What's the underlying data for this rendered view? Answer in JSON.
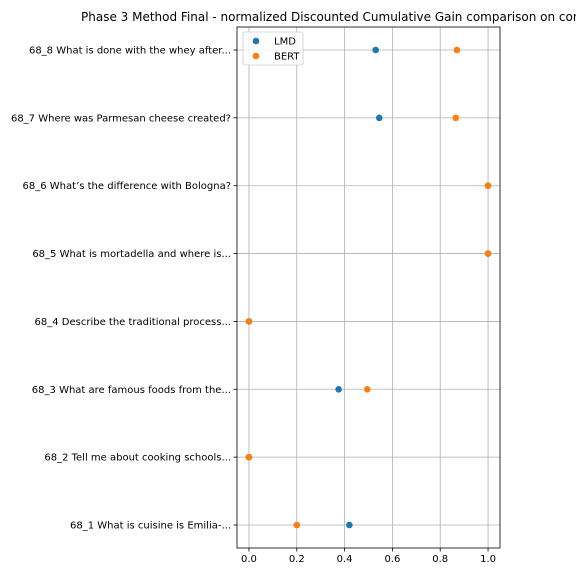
{
  "chart_data": {
    "type": "scatter",
    "title": "Phase 3 Method Final - normalized Discounted Cumulative Gain comparison on con",
    "xlabel": "",
    "ylabel": "",
    "xlim": [
      -0.05,
      1.05
    ],
    "xticks": [
      "0.0",
      "0.2",
      "0.4",
      "0.6",
      "0.8",
      "1.0"
    ],
    "xtick_values": [
      0,
      0.2,
      0.4,
      0.6,
      0.8,
      1.0
    ],
    "grid": true,
    "legend_position": "top-left",
    "categories": [
      "68_1 What is cuisine is Emilia-...",
      "68_2 Tell me about cooking schools...",
      "68_3 What are famous foods from the...",
      "68_4 Describe the traditional process...",
      "68_5 What is mortadella and where is...",
      "68_6 What’s the difference with Bologna?",
      "68_7 Where was Parmesan cheese created?",
      "68_8 What is done with the whey after..."
    ],
    "series": [
      {
        "name": "LMD",
        "color": "#1f77b4",
        "values": [
          0.42,
          0.0,
          0.375,
          0.0,
          1.0,
          1.0,
          0.545,
          0.53
        ]
      },
      {
        "name": "BERT",
        "color": "#ff7f0e",
        "values": [
          0.2,
          0.0,
          0.495,
          0.0,
          1.0,
          1.0,
          0.865,
          0.87
        ]
      }
    ]
  }
}
